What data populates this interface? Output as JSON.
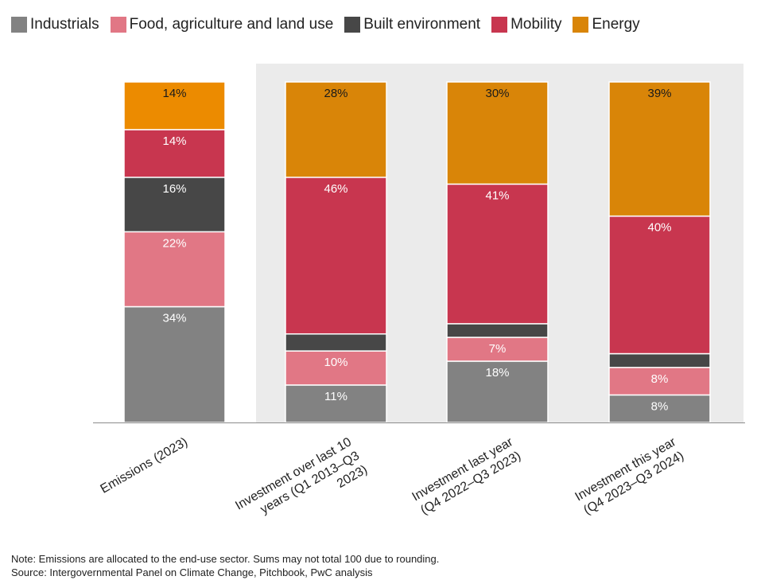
{
  "legend": [
    {
      "label": "Industrials",
      "color": "#828282"
    },
    {
      "label": "Food, agriculture and land use",
      "color": "#e17785"
    },
    {
      "label": "Built environment",
      "color": "#474747"
    },
    {
      "label": "Mobility",
      "color": "#c8364f"
    },
    {
      "label": "Energy",
      "color": "#d98508"
    }
  ],
  "chart_data": {
    "type": "bar",
    "stacked": true,
    "grid": false,
    "ylim": [
      0,
      100
    ],
    "legend_position": "top-left",
    "categories": [
      "Emissions (2023)",
      "Investment over last 10 years (Q1 2013–Q3 2023)",
      "Investment last year (Q4 2022–Q3 2023)",
      "Investment this year (Q4 2023–Q3 2024)"
    ],
    "category_label_lines": [
      [
        "Emissions (2023)"
      ],
      [
        "Investment over last 10",
        "years (Q1 2013–Q3",
        "2023)"
      ],
      [
        "Investment last year",
        "(Q4 2022–Q3 2023)"
      ],
      [
        "Investment this year",
        "(Q4 2023–Q3 2024)"
      ]
    ],
    "shaded_categories": [
      1,
      2,
      3
    ],
    "series": [
      {
        "name": "Industrials",
        "color": "#828282",
        "values": [
          34,
          11,
          18,
          8
        ],
        "labels": [
          "34%",
          "11%",
          "18%",
          "8%"
        ],
        "label_color": "#ffffff"
      },
      {
        "name": "Food, agriculture and land use",
        "color": "#e17785",
        "values": [
          22,
          10,
          7,
          8
        ],
        "labels": [
          "22%",
          "10%",
          "7%",
          "8%"
        ],
        "label_color": "#ffffff"
      },
      {
        "name": "Built environment",
        "color": "#474747",
        "values": [
          16,
          5,
          4,
          4
        ],
        "labels": [
          "16%",
          "",
          "",
          ""
        ],
        "label_color": "#ffffff"
      },
      {
        "name": "Mobility",
        "color": "#c8364f",
        "values": [
          14,
          46,
          41,
          40
        ],
        "labels": [
          "14%",
          "46%",
          "41%",
          "40%"
        ],
        "label_color": "#ffffff"
      },
      {
        "name": "Energy",
        "color": "#d98508",
        "values": [
          14,
          28,
          30,
          39
        ],
        "labels": [
          "14%",
          "28%",
          "30%",
          "39%"
        ],
        "label_color": "#1a1a1a"
      }
    ],
    "emissions_energy_color": "#ec8b00"
  },
  "footnote": {
    "note": "Note: Emissions are allocated to the end-use sector. Sums may not total 100 due to rounding.",
    "source": "Source: Intergovernmental Panel on Climate Change, Pitchbook, PwC analysis"
  }
}
